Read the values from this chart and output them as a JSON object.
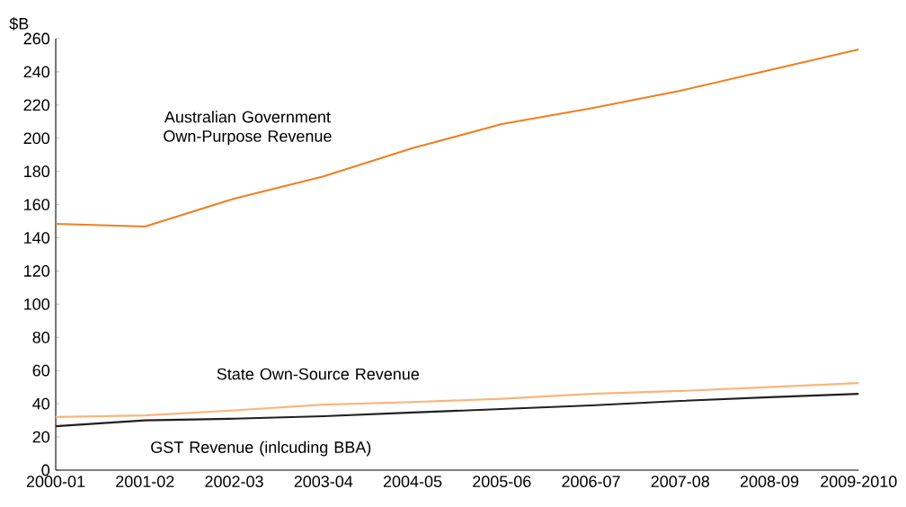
{
  "chart_data": {
    "type": "line",
    "ylabel": "$B",
    "categories": [
      "2000-01",
      "2001-02",
      "2002-03",
      "2003-04",
      "2004-05",
      "2005-06",
      "2006-07",
      "2007-08",
      "2008-09",
      "2009-2010"
    ],
    "series": [
      {
        "name": "Australian Government Own-Purpose Revenue",
        "color": "#f07f21",
        "values": [
          148.4,
          146.8,
          163.6,
          177,
          194,
          208.5,
          218,
          228.6,
          241,
          253.5
        ]
      },
      {
        "name": "State Own-Source Revenue",
        "color": "#f9b57a",
        "values": [
          32,
          33,
          36,
          39.5,
          41,
          43,
          46,
          47.7,
          50,
          52.5
        ]
      },
      {
        "name": "GST Revenue (inlcuding BBA)",
        "color": "#231f20",
        "values": [
          26.5,
          30,
          31,
          32.5,
          34.7,
          36.8,
          39,
          41.7,
          43.9,
          46
        ]
      }
    ],
    "ylim": [
      0,
      260
    ],
    "yticks": [
      0,
      20,
      40,
      60,
      80,
      100,
      120,
      140,
      160,
      180,
      200,
      220,
      240,
      260
    ],
    "grid": false,
    "legend": false,
    "marker": "none",
    "line_style": "solid"
  }
}
